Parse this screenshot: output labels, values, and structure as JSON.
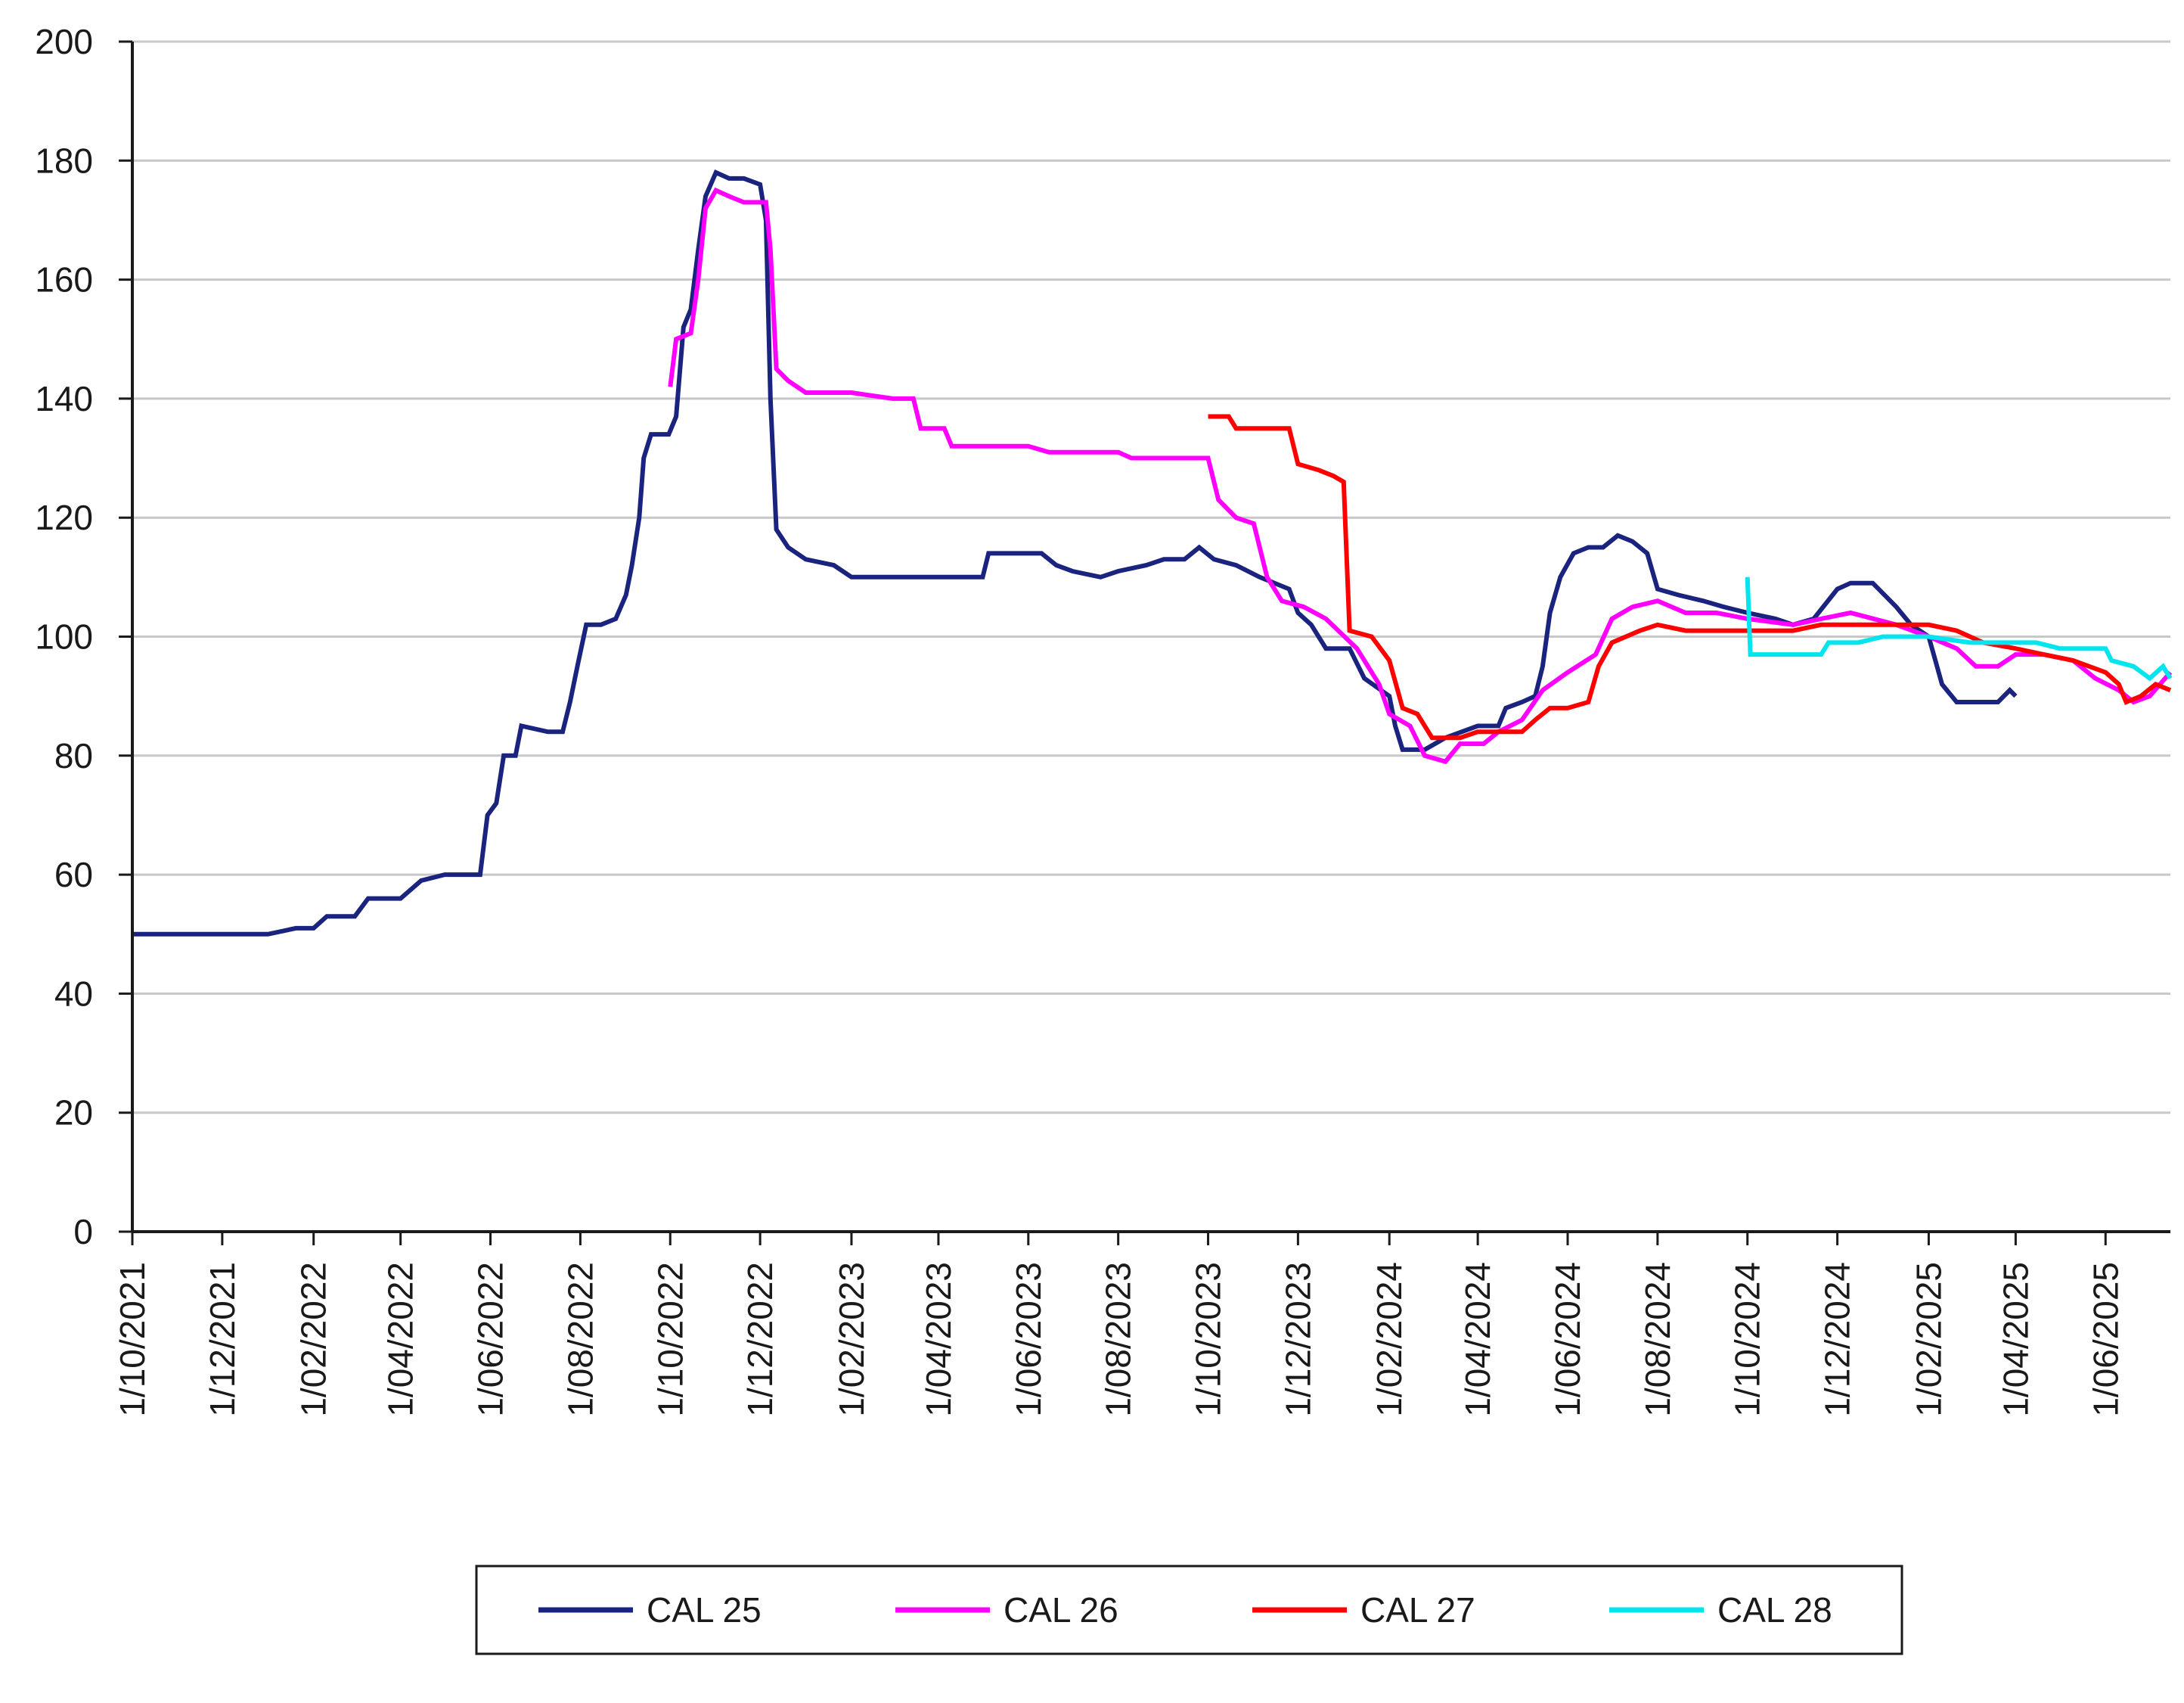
{
  "chart_data": {
    "type": "line",
    "title": "",
    "xlabel": "",
    "ylabel": "",
    "x_ticks": [
      "1/10/2021",
      "1/12/2021",
      "1/02/2022",
      "1/04/2022",
      "1/06/2022",
      "1/08/2022",
      "1/10/2022",
      "1/12/2022",
      "1/02/2023",
      "1/04/2023",
      "1/06/2023",
      "1/08/2023",
      "1/10/2023",
      "1/12/2023",
      "1/02/2024",
      "1/04/2024",
      "1/06/2024",
      "1/08/2024",
      "1/10/2024",
      "1/12/2024",
      "1/02/2025",
      "1/04/2025",
      "1/06/2025"
    ],
    "y_ticks": [
      "0",
      "20",
      "40",
      "60",
      "80",
      "100",
      "120",
      "140",
      "160",
      "180",
      "200"
    ],
    "xlim": [
      "2021-10-01",
      "2025-07-15"
    ],
    "ylim": [
      0,
      200
    ],
    "grid": "horizontal",
    "legend_position": "bottom",
    "series": [
      {
        "name": "CAL 25",
        "color": "#1a237e",
        "points": [
          [
            "2021-10-01",
            50
          ],
          [
            "2021-11-20",
            50
          ],
          [
            "2022-01-01",
            50
          ],
          [
            "2022-01-20",
            51
          ],
          [
            "2022-02-01",
            51
          ],
          [
            "2022-02-10",
            53
          ],
          [
            "2022-03-01",
            53
          ],
          [
            "2022-03-10",
            56
          ],
          [
            "2022-04-01",
            56
          ],
          [
            "2022-04-15",
            59
          ],
          [
            "2022-05-01",
            60
          ],
          [
            "2022-05-25",
            60
          ],
          [
            "2022-05-30",
            70
          ],
          [
            "2022-06-05",
            72
          ],
          [
            "2022-06-10",
            80
          ],
          [
            "2022-06-18",
            80
          ],
          [
            "2022-06-22",
            85
          ],
          [
            "2022-07-10",
            84
          ],
          [
            "2022-07-20",
            84
          ],
          [
            "2022-07-25",
            89
          ],
          [
            "2022-07-30",
            95
          ],
          [
            "2022-08-05",
            102
          ],
          [
            "2022-08-15",
            102
          ],
          [
            "2022-08-25",
            103
          ],
          [
            "2022-09-01",
            107
          ],
          [
            "2022-09-05",
            112
          ],
          [
            "2022-09-10",
            120
          ],
          [
            "2022-09-13",
            130
          ],
          [
            "2022-09-18",
            134
          ],
          [
            "2022-09-30",
            134
          ],
          [
            "2022-10-05",
            137
          ],
          [
            "2022-10-10",
            152
          ],
          [
            "2022-10-15",
            155
          ],
          [
            "2022-10-20",
            165
          ],
          [
            "2022-10-25",
            174
          ],
          [
            "2022-11-01",
            178
          ],
          [
            "2022-11-10",
            177
          ],
          [
            "2022-11-20",
            177
          ],
          [
            "2022-12-01",
            176
          ],
          [
            "2022-12-05",
            170
          ],
          [
            "2022-12-08",
            140
          ],
          [
            "2022-12-12",
            118
          ],
          [
            "2022-12-20",
            115
          ],
          [
            "2023-01-01",
            113
          ],
          [
            "2023-01-20",
            112
          ],
          [
            "2023-02-01",
            110
          ],
          [
            "2023-02-20",
            110
          ],
          [
            "2023-03-01",
            110
          ],
          [
            "2023-03-20",
            110
          ],
          [
            "2023-04-20",
            110
          ],
          [
            "2023-05-01",
            110
          ],
          [
            "2023-05-05",
            114
          ],
          [
            "2023-05-20",
            114
          ],
          [
            "2023-06-10",
            114
          ],
          [
            "2023-06-20",
            112
          ],
          [
            "2023-07-01",
            111
          ],
          [
            "2023-07-20",
            110
          ],
          [
            "2023-08-01",
            111
          ],
          [
            "2023-08-20",
            112
          ],
          [
            "2023-09-01",
            113
          ],
          [
            "2023-09-15",
            113
          ],
          [
            "2023-09-25",
            115
          ],
          [
            "2023-10-05",
            113
          ],
          [
            "2023-10-20",
            112
          ],
          [
            "2023-11-05",
            110
          ],
          [
            "2023-11-25",
            108
          ],
          [
            "2023-12-01",
            104
          ],
          [
            "2023-12-10",
            102
          ],
          [
            "2023-12-20",
            98
          ],
          [
            "2024-01-05",
            98
          ],
          [
            "2024-01-15",
            93
          ],
          [
            "2024-02-01",
            90
          ],
          [
            "2024-02-05",
            85
          ],
          [
            "2024-02-10",
            81
          ],
          [
            "2024-02-25",
            81
          ],
          [
            "2024-03-10",
            83
          ],
          [
            "2024-04-01",
            85
          ],
          [
            "2024-04-15",
            85
          ],
          [
            "2024-04-20",
            88
          ],
          [
            "2024-05-01",
            89
          ],
          [
            "2024-05-10",
            90
          ],
          [
            "2024-05-15",
            95
          ],
          [
            "2024-05-20",
            104
          ],
          [
            "2024-05-27",
            110
          ],
          [
            "2024-06-05",
            114
          ],
          [
            "2024-06-15",
            115
          ],
          [
            "2024-06-25",
            115
          ],
          [
            "2024-07-05",
            117
          ],
          [
            "2024-07-15",
            116
          ],
          [
            "2024-07-25",
            114
          ],
          [
            "2024-08-01",
            108
          ],
          [
            "2024-08-15",
            107
          ],
          [
            "2024-09-01",
            106
          ],
          [
            "2024-09-15",
            105
          ],
          [
            "2024-10-01",
            104
          ],
          [
            "2024-10-20",
            103
          ],
          [
            "2024-11-01",
            102
          ],
          [
            "2024-11-15",
            103
          ],
          [
            "2024-12-01",
            108
          ],
          [
            "2024-12-10",
            109
          ],
          [
            "2024-12-25",
            109
          ],
          [
            "2025-01-10",
            105
          ],
          [
            "2025-01-20",
            102
          ],
          [
            "2025-02-01",
            100
          ],
          [
            "2025-02-10",
            92
          ],
          [
            "2025-02-20",
            89
          ],
          [
            "2025-03-01",
            89
          ],
          [
            "2025-03-20",
            89
          ],
          [
            "2025-03-28",
            91
          ],
          [
            "2025-04-01",
            90
          ]
        ]
      },
      {
        "name": "CAL 26",
        "color": "#ff00ff",
        "points": [
          [
            "2022-10-01",
            142
          ],
          [
            "2022-10-05",
            150
          ],
          [
            "2022-10-15",
            151
          ],
          [
            "2022-10-20",
            160
          ],
          [
            "2022-10-25",
            172
          ],
          [
            "2022-11-01",
            175
          ],
          [
            "2022-11-10",
            174
          ],
          [
            "2022-11-20",
            173
          ],
          [
            "2022-12-05",
            173
          ],
          [
            "2022-12-08",
            165
          ],
          [
            "2022-12-12",
            145
          ],
          [
            "2022-12-20",
            143
          ],
          [
            "2023-01-01",
            141
          ],
          [
            "2023-02-01",
            141
          ],
          [
            "2023-03-01",
            140
          ],
          [
            "2023-03-15",
            140
          ],
          [
            "2023-03-20",
            135
          ],
          [
            "2023-04-05",
            135
          ],
          [
            "2023-04-10",
            132
          ],
          [
            "2023-05-01",
            132
          ],
          [
            "2023-06-01",
            132
          ],
          [
            "2023-06-15",
            131
          ],
          [
            "2023-07-01",
            131
          ],
          [
            "2023-08-01",
            131
          ],
          [
            "2023-08-10",
            130
          ],
          [
            "2023-09-01",
            130
          ],
          [
            "2023-10-01",
            130
          ],
          [
            "2023-10-08",
            123
          ],
          [
            "2023-10-20",
            120
          ],
          [
            "2023-11-01",
            119
          ],
          [
            "2023-11-10",
            110
          ],
          [
            "2023-11-20",
            106
          ],
          [
            "2023-12-05",
            105
          ],
          [
            "2023-12-20",
            103
          ],
          [
            "2024-01-10",
            98
          ],
          [
            "2024-01-25",
            92
          ],
          [
            "2024-02-01",
            87
          ],
          [
            "2024-02-15",
            85
          ],
          [
            "2024-02-25",
            80
          ],
          [
            "2024-03-10",
            79
          ],
          [
            "2024-03-20",
            82
          ],
          [
            "2024-04-05",
            82
          ],
          [
            "2024-04-15",
            84
          ],
          [
            "2024-05-01",
            86
          ],
          [
            "2024-05-15",
            91
          ],
          [
            "2024-06-01",
            94
          ],
          [
            "2024-06-20",
            97
          ],
          [
            "2024-07-01",
            103
          ],
          [
            "2024-07-15",
            105
          ],
          [
            "2024-08-01",
            106
          ],
          [
            "2024-08-20",
            104
          ],
          [
            "2024-09-10",
            104
          ],
          [
            "2024-10-01",
            103
          ],
          [
            "2024-11-01",
            102
          ],
          [
            "2024-11-20",
            103
          ],
          [
            "2024-12-10",
            104
          ],
          [
            "2025-01-10",
            102
          ],
          [
            "2025-02-01",
            100
          ],
          [
            "2025-02-20",
            98
          ],
          [
            "2025-03-05",
            95
          ],
          [
            "2025-03-20",
            95
          ],
          [
            "2025-04-01",
            97
          ],
          [
            "2025-04-20",
            97
          ],
          [
            "2025-05-10",
            96
          ],
          [
            "2025-05-25",
            93
          ],
          [
            "2025-06-10",
            91
          ],
          [
            "2025-06-20",
            89
          ],
          [
            "2025-07-01",
            90
          ],
          [
            "2025-07-15",
            94
          ]
        ]
      },
      {
        "name": "CAL 27",
        "color": "#ff0000",
        "points": [
          [
            "2023-10-01",
            137
          ],
          [
            "2023-10-15",
            137
          ],
          [
            "2023-10-20",
            135
          ],
          [
            "2023-11-01",
            135
          ],
          [
            "2023-11-25",
            135
          ],
          [
            "2023-12-01",
            129
          ],
          [
            "2023-12-15",
            128
          ],
          [
            "2023-12-25",
            127
          ],
          [
            "2024-01-01",
            126
          ],
          [
            "2024-01-05",
            101
          ],
          [
            "2024-01-20",
            100
          ],
          [
            "2024-02-01",
            96
          ],
          [
            "2024-02-10",
            88
          ],
          [
            "2024-02-20",
            87
          ],
          [
            "2024-03-01",
            83
          ],
          [
            "2024-03-20",
            83
          ],
          [
            "2024-04-01",
            84
          ],
          [
            "2024-05-01",
            84
          ],
          [
            "2024-05-10",
            86
          ],
          [
            "2024-05-20",
            88
          ],
          [
            "2024-06-01",
            88
          ],
          [
            "2024-06-15",
            89
          ],
          [
            "2024-06-22",
            95
          ],
          [
            "2024-07-01",
            99
          ],
          [
            "2024-07-20",
            101
          ],
          [
            "2024-08-01",
            102
          ],
          [
            "2024-08-20",
            101
          ],
          [
            "2024-09-15",
            101
          ],
          [
            "2024-10-01",
            101
          ],
          [
            "2024-11-01",
            101
          ],
          [
            "2024-11-20",
            102
          ],
          [
            "2024-12-10",
            102
          ],
          [
            "2025-01-10",
            102
          ],
          [
            "2025-02-01",
            102
          ],
          [
            "2025-02-20",
            101
          ],
          [
            "2025-03-10",
            99
          ],
          [
            "2025-04-01",
            98
          ],
          [
            "2025-04-20",
            97
          ],
          [
            "2025-05-10",
            96
          ],
          [
            "2025-06-01",
            94
          ],
          [
            "2025-06-10",
            92
          ],
          [
            "2025-06-15",
            89
          ],
          [
            "2025-06-25",
            90
          ],
          [
            "2025-07-05",
            92
          ],
          [
            "2025-07-15",
            91
          ]
        ]
      },
      {
        "name": "CAL 28",
        "color": "#00e5ee",
        "points": [
          [
            "2024-10-01",
            110
          ],
          [
            "2024-10-03",
            97
          ],
          [
            "2024-10-20",
            97
          ],
          [
            "2024-11-10",
            97
          ],
          [
            "2024-11-20",
            97
          ],
          [
            "2024-11-25",
            99
          ],
          [
            "2024-12-15",
            99
          ],
          [
            "2025-01-01",
            100
          ],
          [
            "2025-02-01",
            100
          ],
          [
            "2025-03-01",
            99
          ],
          [
            "2025-03-20",
            99
          ],
          [
            "2025-04-15",
            99
          ],
          [
            "2025-05-01",
            98
          ],
          [
            "2025-05-20",
            98
          ],
          [
            "2025-06-01",
            98
          ],
          [
            "2025-06-05",
            96
          ],
          [
            "2025-06-20",
            95
          ],
          [
            "2025-07-01",
            93
          ],
          [
            "2025-07-10",
            95
          ],
          [
            "2025-07-15",
            93
          ]
        ]
      }
    ]
  }
}
